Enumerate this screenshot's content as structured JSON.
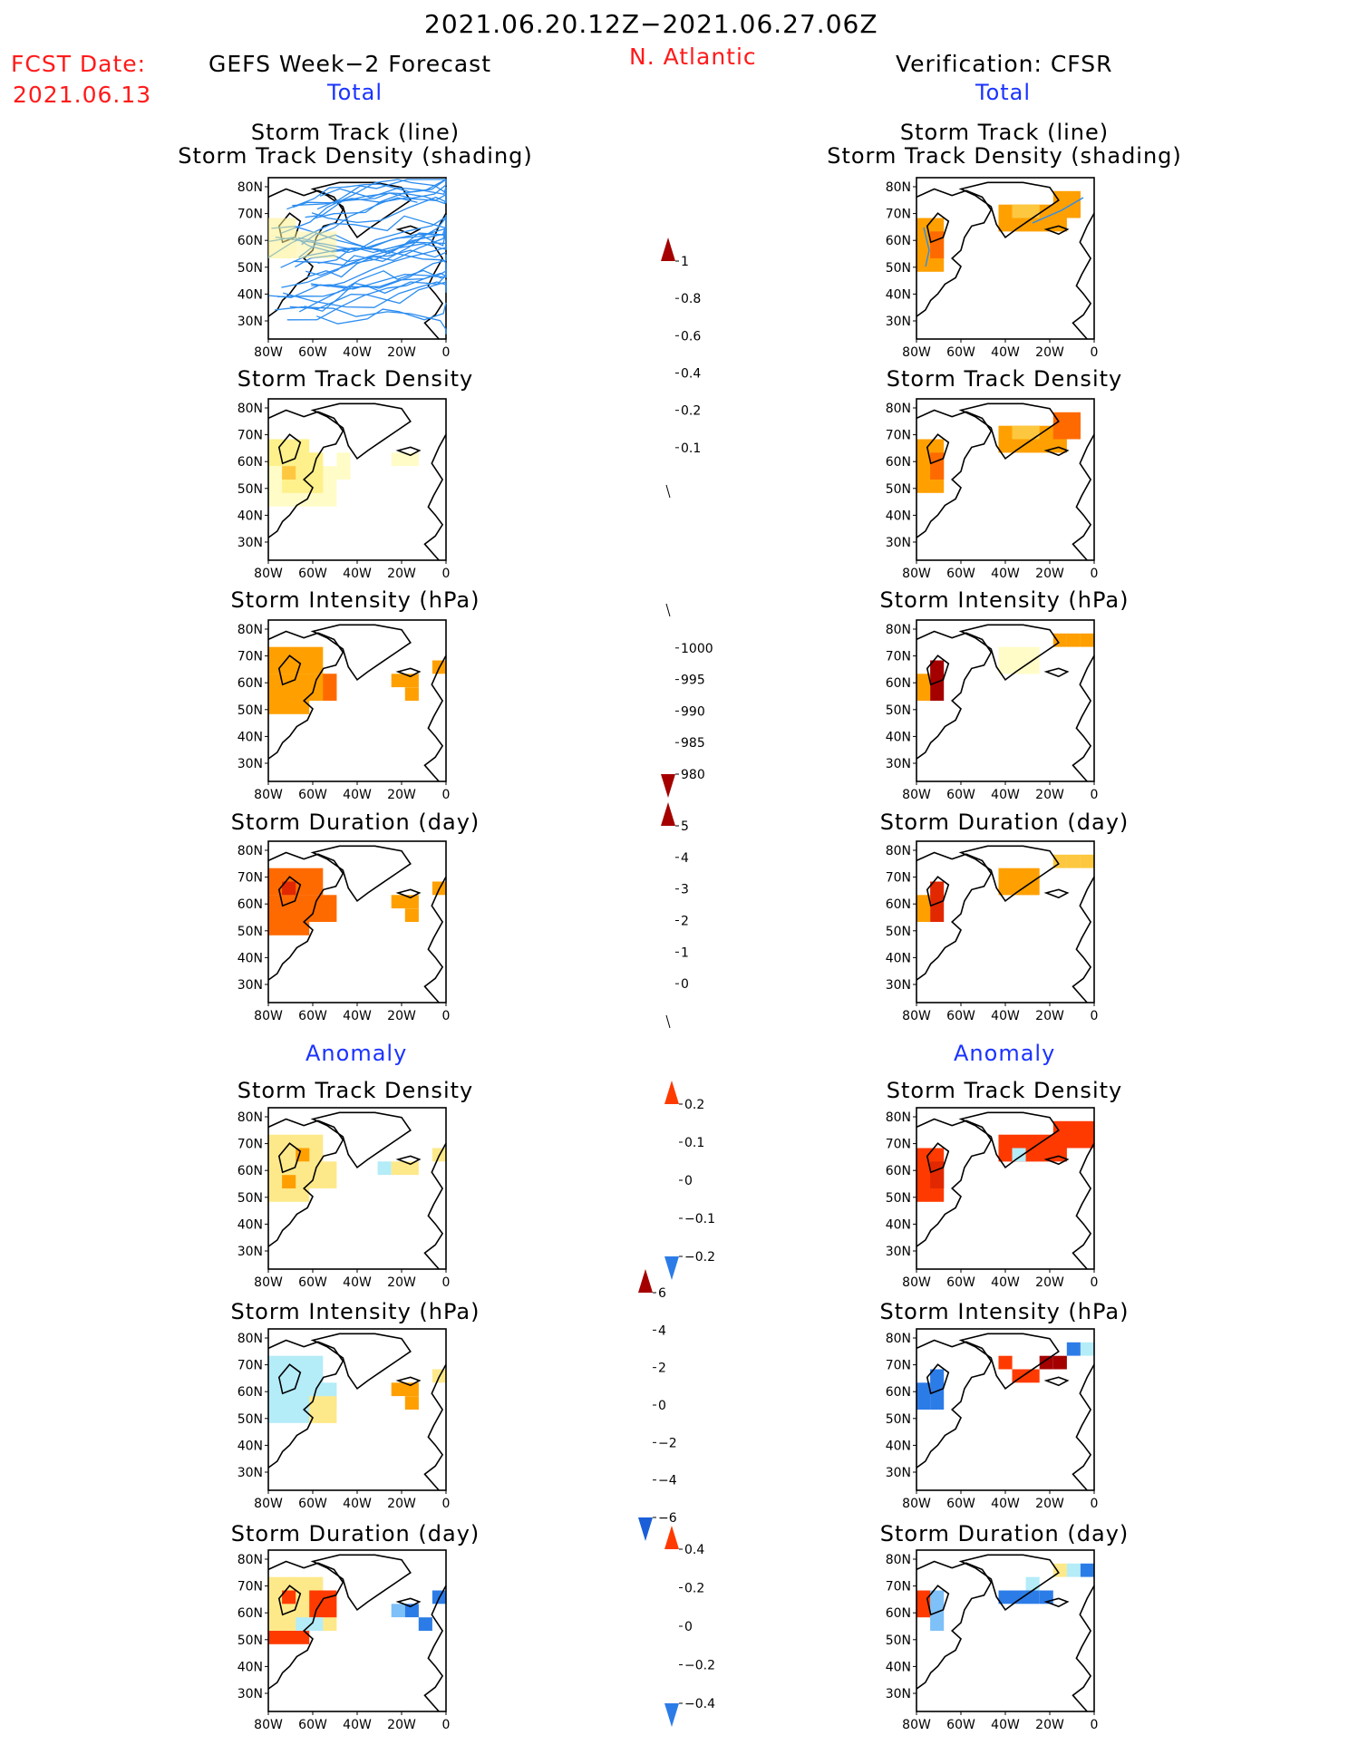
{
  "header": {
    "date_range": "2021.06.20.12Z−2021.06.27.06Z",
    "fcst_label": "FCST Date:",
    "fcst_date": "2021.06.13",
    "left_title": "GEFS Week−2 Forecast",
    "region": "N. Atlantic",
    "right_title": "Verification: CFSR",
    "total_label": "Total",
    "anomaly_label": "Anomaly"
  },
  "colors": {
    "text_red": "#ff1a1a",
    "text_blue": "#1a33ff",
    "track_line": "#2a8cf0"
  },
  "panel_titles": {
    "track_line": "Storm Track (line)",
    "track_shading": "Storm Track Density (shading)",
    "density": "Storm Track Density",
    "intensity": "Storm Intensity (hPa)",
    "duration": "Storm Duration (day)"
  },
  "axes": {
    "lat_ticks": [
      "80N",
      "70N",
      "60N",
      "50N",
      "40N",
      "30N"
    ],
    "lon_ticks": [
      "80W",
      "60W",
      "40W",
      "20W",
      "0"
    ]
  },
  "colorbars": {
    "total_density": {
      "labels": [
        "1",
        "0.8",
        "0.6",
        "0.4",
        "0.2",
        "0.1"
      ],
      "colors": [
        "#a50000",
        "#e12800",
        "#ff6a00",
        "#ffa000",
        "#fdc840",
        "#fef08a",
        "#fffcc8"
      ]
    },
    "total_intensity": {
      "labels": [
        "1000",
        "995",
        "990",
        "985",
        "980"
      ],
      "colors": [
        "#fffcc8",
        "#fef08a",
        "#ffa000",
        "#ff6a00",
        "#d21800",
        "#a50000"
      ]
    },
    "total_duration": {
      "labels": [
        "5",
        "4",
        "3",
        "2",
        "1",
        "0"
      ],
      "colors": [
        "#a50000",
        "#e12800",
        "#ff6a00",
        "#ffa000",
        "#fdc840",
        "#fef08a",
        "#fffcc8"
      ]
    },
    "anom_density": {
      "labels": [
        "0.2",
        "0.1",
        "0",
        "−0.1",
        "−0.2"
      ],
      "colors": [
        "#ff3a00",
        "#ffa000",
        "#fee98a",
        "#b4ecf8",
        "#7ec0f8",
        "#2c7ce8"
      ]
    },
    "anom_intensity": {
      "labels": [
        "6",
        "4",
        "2",
        "0",
        "−2",
        "−4",
        "−6"
      ],
      "colors": [
        "#a50000",
        "#ff3a00",
        "#ffa000",
        "#fee98a",
        "#b4ecf8",
        "#7ec0f8",
        "#2c7ce8",
        "#1a5ed8"
      ]
    },
    "anom_duration": {
      "labels": [
        "0.4",
        "0.2",
        "0",
        "−0.2",
        "−0.4"
      ],
      "colors": [
        "#ff3a00",
        "#ffa000",
        "#fee98a",
        "#b4ecf8",
        "#7ec0f8",
        "#2c7ce8"
      ]
    }
  }
}
